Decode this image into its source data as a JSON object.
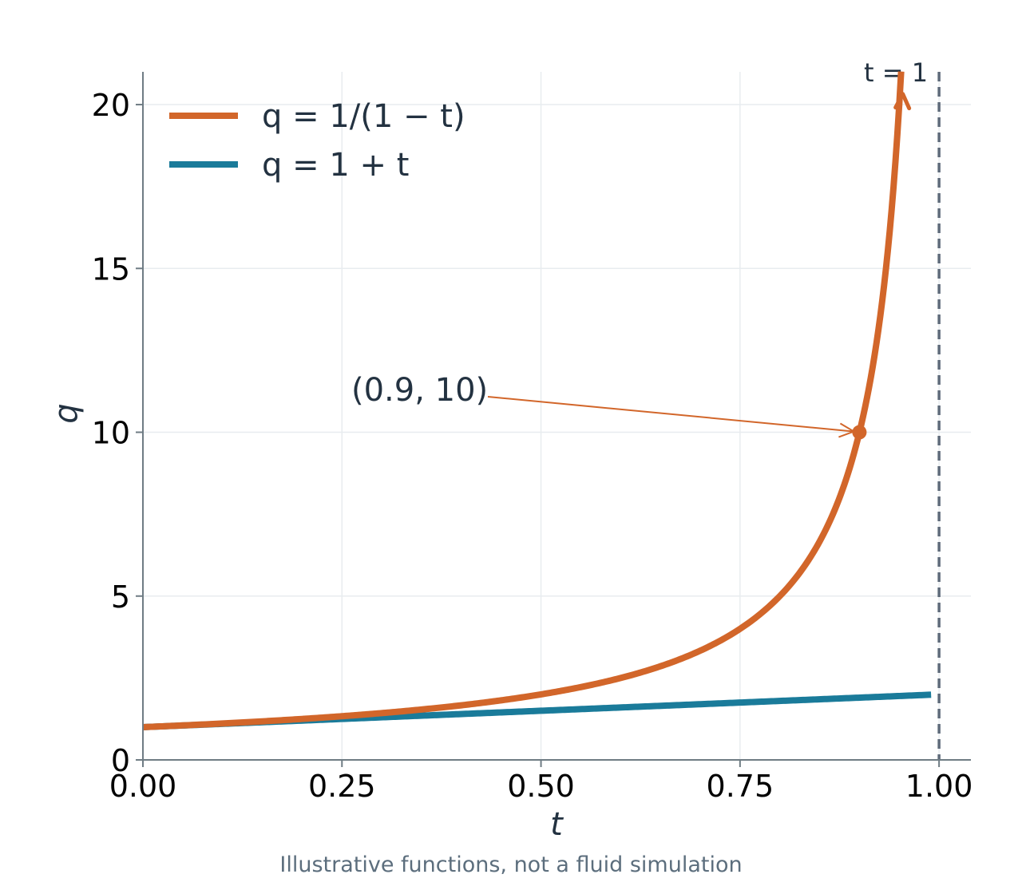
{
  "chart_data": {
    "type": "line",
    "xlabel": "t",
    "ylabel": "q",
    "xlim": [
      0,
      1.04
    ],
    "ylim": [
      0,
      21
    ],
    "xticks": [
      0,
      0.25,
      0.5,
      0.75,
      1.0
    ],
    "xtick_labels": [
      "0.00",
      "0.25",
      "0.50",
      "0.75",
      "1.00"
    ],
    "yticks": [
      0,
      5,
      10,
      15,
      20
    ],
    "ytick_labels": [
      "0",
      "5",
      "10",
      "15",
      "20"
    ],
    "grid": true,
    "legend_placement": "top-left",
    "series": [
      {
        "name": "q = 1/(1 − t)",
        "color": "#d2662a",
        "formula": "1/(1-t)",
        "x_range": [
          0,
          0.9524
        ],
        "end_marker": "arrow"
      },
      {
        "name": "q = 1 + t",
        "color": "#1a7b9a",
        "formula": "1+t",
        "x_range": [
          0,
          0.99
        ]
      }
    ],
    "reference_line": {
      "x": 1.0,
      "label": "t = 1",
      "color": "#5f6b7a",
      "style": "dashed"
    },
    "annotation": {
      "text": "(0.9, 10)",
      "point": [
        0.9,
        10
      ],
      "color": "#d2662a"
    },
    "caption": "Illustrative functions, not a fluid simulation"
  }
}
